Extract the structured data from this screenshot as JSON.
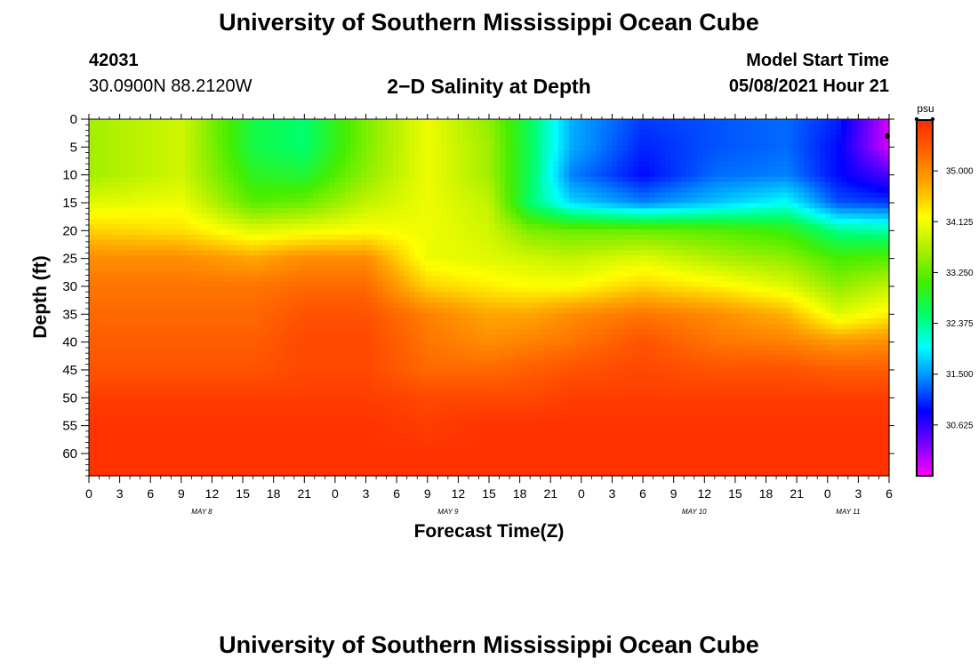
{
  "header": {
    "title": "University of Southern Mississippi Ocean Cube",
    "station_id": "42031",
    "coordinates": "30.0900N  88.2120W",
    "subtitle": "2−D Salinity at Depth",
    "model_label": "Model Start Time",
    "model_time": "05/08/2021 Hour 21"
  },
  "footer": {
    "title": "University of Southern Mississippi Ocean Cube"
  },
  "chart_data": {
    "type": "heatmap",
    "title": "2−D Salinity at Depth",
    "xlabel": "Forecast Time(Z)",
    "ylabel": "Depth (ft)",
    "x_unit": "hours since model start (05/08/2021 21Z)",
    "xlim": [
      -21,
      57
    ],
    "ylim": [
      0,
      64
    ],
    "y_inverted": true,
    "x_tick_labels": [
      "0",
      "3",
      "6",
      "9",
      "12",
      "15",
      "18",
      "21",
      "0",
      "3",
      "6",
      "9",
      "12",
      "15",
      "18",
      "21",
      "0",
      "3",
      "6",
      "9",
      "12",
      "15",
      "18",
      "21",
      "0",
      "3",
      "6"
    ],
    "y_ticks": [
      0,
      5,
      10,
      15,
      20,
      25,
      30,
      35,
      40,
      45,
      50,
      55,
      60
    ],
    "day_labels": [
      {
        "label": "MAY 8",
        "hour": -10
      },
      {
        "label": "MAY 9",
        "hour": 14
      },
      {
        "label": "MAY 10",
        "hour": 38
      },
      {
        "label": "MAY 11",
        "hour": 53
      }
    ],
    "colorbar": {
      "unit": "psu",
      "min": 29.75,
      "max": 35.875,
      "ticks": [
        "35.000",
        "34.125",
        "33.250",
        "32.375",
        "31.500",
        "30.625"
      ],
      "colors": [
        "#ff00ff",
        "#7700ff",
        "#0000ff",
        "#0088ff",
        "#00ffff",
        "#00ff66",
        "#44ee00",
        "#aaf000",
        "#ffff00",
        "#ffaa00",
        "#ff6600",
        "#ff2a00"
      ]
    },
    "series": [
      {
        "x": -21,
        "depth": [
          0,
          5,
          10,
          15,
          20,
          25,
          30,
          35,
          40,
          45,
          50,
          55,
          60,
          64
        ],
        "salinity": [
          33.6,
          33.6,
          33.6,
          34.0,
          34.5,
          35.0,
          35.2,
          35.3,
          35.4,
          35.5,
          35.7,
          35.8,
          35.8,
          35.8
        ]
      },
      {
        "x": -12,
        "depth": [
          0,
          5,
          10,
          15,
          20,
          25,
          30,
          35,
          40,
          45,
          50,
          55,
          60,
          64
        ],
        "salinity": [
          33.9,
          33.9,
          33.9,
          34.1,
          34.4,
          35.0,
          35.2,
          35.3,
          35.4,
          35.5,
          35.7,
          35.8,
          35.8,
          35.8
        ]
      },
      {
        "x": -5,
        "depth": [
          0,
          5,
          10,
          15,
          20,
          25,
          30,
          35,
          40,
          45,
          50,
          55,
          60,
          64
        ],
        "salinity": [
          32.7,
          32.7,
          32.9,
          33.2,
          34.0,
          34.8,
          35.2,
          35.3,
          35.4,
          35.5,
          35.7,
          35.8,
          35.8,
          35.8
        ]
      },
      {
        "x": 0,
        "depth": [
          0,
          5,
          10,
          15,
          20,
          25,
          30,
          35,
          40,
          45,
          50,
          55,
          60,
          64
        ],
        "salinity": [
          32.5,
          32.5,
          32.8,
          33.3,
          34.1,
          35.0,
          35.3,
          35.5,
          35.6,
          35.6,
          35.7,
          35.8,
          35.8,
          35.8
        ]
      },
      {
        "x": 6,
        "depth": [
          0,
          5,
          10,
          15,
          20,
          25,
          30,
          35,
          40,
          45,
          50,
          55,
          60,
          64
        ],
        "salinity": [
          33.4,
          33.4,
          33.5,
          33.8,
          34.2,
          35.0,
          35.3,
          35.5,
          35.6,
          35.6,
          35.7,
          35.8,
          35.8,
          35.8
        ]
      },
      {
        "x": 12,
        "depth": [
          0,
          5,
          10,
          15,
          20,
          25,
          30,
          35,
          40,
          45,
          50,
          55,
          60,
          64
        ],
        "salinity": [
          34.1,
          34.1,
          34.1,
          34.1,
          34.1,
          34.1,
          34.5,
          35.1,
          35.2,
          35.3,
          35.6,
          35.7,
          35.8,
          35.8
        ]
      },
      {
        "x": 18,
        "depth": [
          0,
          5,
          10,
          15,
          20,
          25,
          30,
          35,
          40,
          45,
          50,
          55,
          60,
          64
        ],
        "salinity": [
          33.5,
          33.6,
          33.6,
          33.8,
          33.9,
          34.0,
          34.3,
          34.8,
          35.0,
          35.3,
          35.6,
          35.8,
          35.8,
          35.8
        ]
      },
      {
        "x": 22,
        "depth": [
          0,
          5,
          10,
          15,
          20,
          25,
          30,
          35,
          40,
          45,
          50,
          55,
          60,
          64
        ],
        "salinity": [
          32.6,
          32.6,
          32.6,
          32.5,
          33.4,
          33.9,
          34.2,
          34.8,
          35.1,
          35.4,
          35.6,
          35.8,
          35.8,
          35.8
        ]
      },
      {
        "x": 26,
        "depth": [
          0,
          5,
          10,
          15,
          20,
          25,
          30,
          35,
          40,
          45,
          50,
          55,
          60,
          64
        ],
        "salinity": [
          31.6,
          31.6,
          31.4,
          31.8,
          33.3,
          33.8,
          34.2,
          35.0,
          35.2,
          35.5,
          35.7,
          35.8,
          35.8,
          35.8
        ]
      },
      {
        "x": 33,
        "depth": [
          0,
          5,
          10,
          15,
          20,
          25,
          30,
          35,
          40,
          45,
          50,
          55,
          60,
          64
        ],
        "salinity": [
          31.1,
          31.0,
          30.9,
          31.4,
          33.3,
          34.0,
          34.5,
          35.2,
          35.5,
          35.6,
          35.7,
          35.8,
          35.8,
          35.8
        ]
      },
      {
        "x": 40,
        "depth": [
          0,
          5,
          10,
          15,
          20,
          25,
          30,
          35,
          40,
          45,
          50,
          55,
          60,
          64
        ],
        "salinity": [
          31.2,
          31.2,
          31.3,
          31.7,
          33.2,
          33.7,
          34.3,
          35.0,
          35.2,
          35.5,
          35.7,
          35.8,
          35.8,
          35.8
        ]
      },
      {
        "x": 47,
        "depth": [
          0,
          5,
          10,
          15,
          20,
          25,
          30,
          35,
          40,
          45,
          50,
          55,
          60,
          64
        ],
        "salinity": [
          31.3,
          31.3,
          31.4,
          32.0,
          33.0,
          33.5,
          34.0,
          34.7,
          35.1,
          35.5,
          35.7,
          35.8,
          35.8,
          35.8
        ]
      },
      {
        "x": 52,
        "depth": [
          0,
          5,
          10,
          15,
          20,
          25,
          30,
          35,
          40,
          45,
          50,
          55,
          60,
          64
        ],
        "salinity": [
          31.0,
          30.9,
          30.9,
          31.2,
          32.4,
          33.1,
          33.5,
          34.0,
          34.9,
          35.4,
          35.7,
          35.8,
          35.8,
          35.8
        ]
      },
      {
        "x": 57,
        "depth": [
          0,
          5,
          10,
          15,
          20,
          25,
          30,
          35,
          40,
          45,
          50,
          55,
          60,
          64
        ],
        "salinity": [
          29.9,
          29.9,
          30.5,
          31.1,
          32.3,
          33.2,
          33.8,
          34.3,
          35.0,
          35.4,
          35.7,
          35.8,
          35.8,
          35.8
        ]
      }
    ]
  }
}
